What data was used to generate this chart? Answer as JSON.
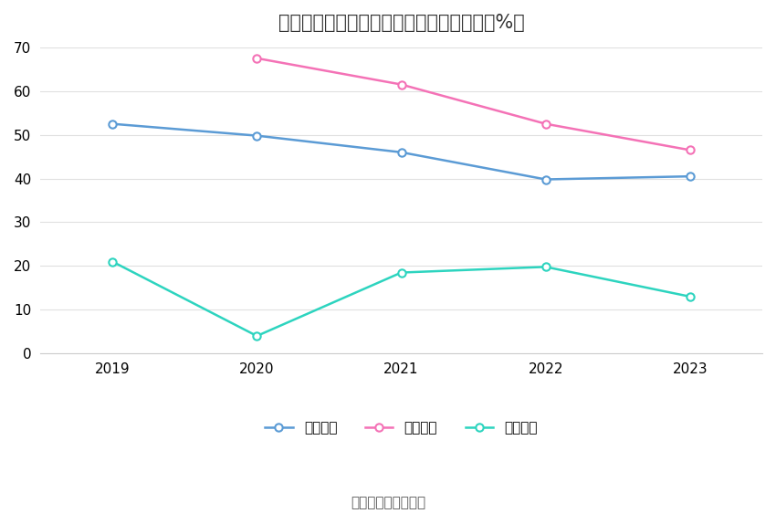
{
  "title": "朗新集团近年来部分主要产品毛利率情况（%）",
  "source": "数据来源：恒生聚源",
  "years": [
    2019,
    2020,
    2021,
    2022,
    2023
  ],
  "series": [
    {
      "name": "软件服务",
      "values": [
        52.5,
        49.8,
        46.0,
        39.8,
        40.5
      ],
      "color": "#5b9bd5",
      "marker": "o"
    },
    {
      "name": "平台运营",
      "values": [
        null,
        67.5,
        61.5,
        52.5,
        46.5
      ],
      "color": "#f472b6",
      "marker": "o"
    },
    {
      "name": "智能终端",
      "values": [
        21.0,
        4.0,
        18.5,
        19.8,
        13.0
      ],
      "color": "#2dd4bf",
      "marker": "o"
    }
  ],
  "ylim": [
    0,
    70
  ],
  "yticks": [
    0,
    10,
    20,
    30,
    40,
    50,
    60,
    70
  ],
  "background_color": "#ffffff",
  "grid_color": "#e0e0e0",
  "title_fontsize": 15,
  "axis_fontsize": 11,
  "legend_fontsize": 11,
  "source_fontsize": 11
}
